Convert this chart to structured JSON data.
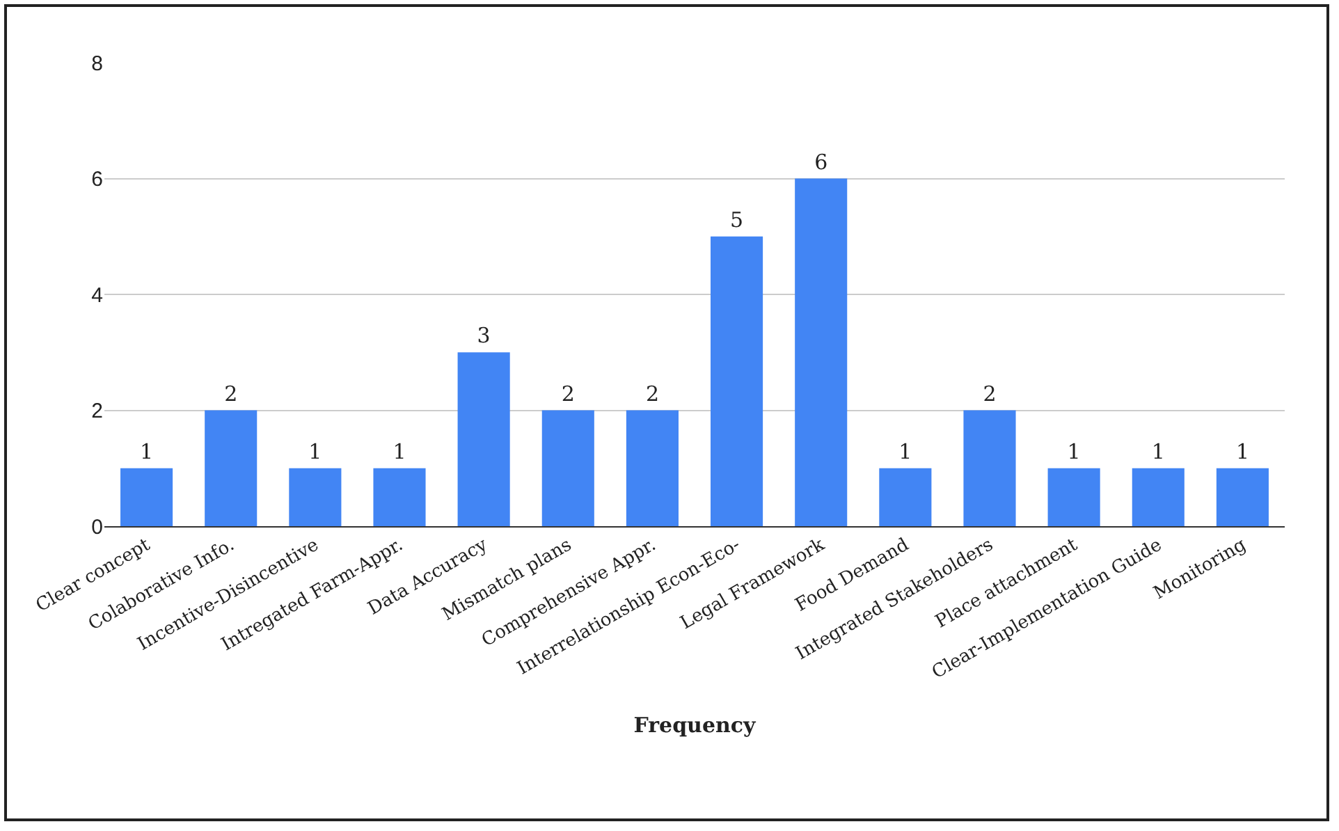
{
  "chart_data": {
    "type": "bar",
    "categories": [
      "Clear concept",
      "Colaborative Info.",
      "Incentive-Disincentive",
      "Intregated Farm-Appr.",
      "Data Accuracy",
      "Mismatch plans",
      "Comprehensive Appr.",
      "Interrelationship Econ-Eco-",
      "Legal Framework",
      "Food Demand",
      "Integrated Stakeholders",
      "Place attachment",
      "Clear-Implementation Guide",
      "Monitoring"
    ],
    "values": [
      1,
      2,
      1,
      1,
      3,
      2,
      2,
      5,
      6,
      1,
      2,
      1,
      1,
      1
    ],
    "color": "#4285f4",
    "xlabel": "Frequency",
    "ylim": [
      0,
      8
    ],
    "yticks": [
      0,
      2,
      4,
      6,
      8
    ],
    "grid": "y",
    "data_labels": true
  }
}
